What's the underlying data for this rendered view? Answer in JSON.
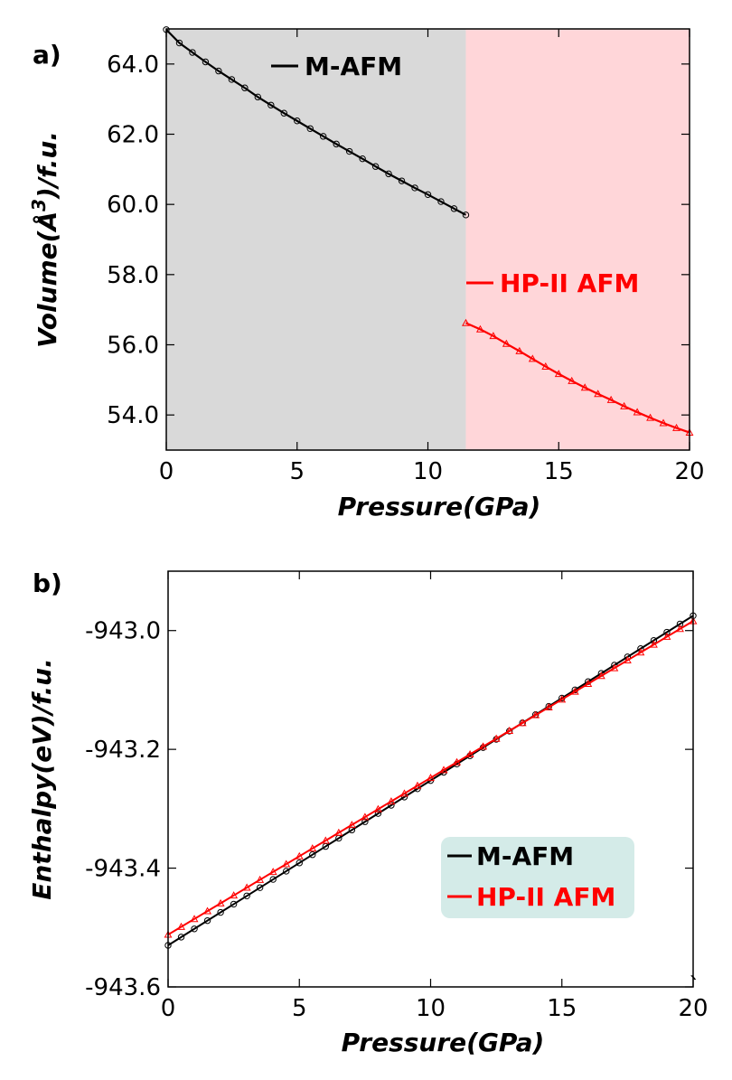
{
  "chart_data": [
    {
      "panel": "a)",
      "type": "line",
      "xlabel": "Pressure(GPa)",
      "ylabel": "Volume(Å^3)/f.u.",
      "ylabel_base": "Volume(Å",
      "ylabel_sup": "3",
      "ylabel_tail": ")/f.u.",
      "xlim": [
        0,
        20
      ],
      "ylim": [
        53.0,
        65.0
      ],
      "xticks": [
        "0",
        "5",
        "10",
        "15",
        "20"
      ],
      "xtick_values": [
        0,
        5,
        10,
        15,
        20
      ],
      "yticks": [
        "54.0",
        "56.0",
        "58.0",
        "60.0",
        "62.0",
        "64.0"
      ],
      "ytick_values": [
        54,
        56,
        58,
        60,
        62,
        64
      ],
      "grid": false,
      "regions": [
        {
          "from": 0,
          "to": 11.45,
          "color": "#d9d9d9"
        },
        {
          "from": 11.45,
          "to": 20,
          "color": "#ffd6d9"
        }
      ],
      "series": [
        {
          "name": "M-AFM",
          "color": "#000000",
          "marker": "circle",
          "x": [
            0,
            0.5,
            1,
            1.5,
            2,
            2.5,
            3,
            3.5,
            4,
            4.5,
            5,
            5.5,
            6,
            6.5,
            7,
            7.5,
            8,
            8.5,
            9,
            9.5,
            10,
            10.5,
            11,
            11.45
          ],
          "y": [
            64.98,
            64.6,
            64.33,
            64.06,
            63.8,
            63.56,
            63.32,
            63.06,
            62.83,
            62.6,
            62.38,
            62.16,
            61.94,
            61.72,
            61.51,
            61.3,
            61.08,
            60.87,
            60.67,
            60.47,
            60.28,
            60.08,
            59.88,
            59.7
          ]
        },
        {
          "name": "HP-II AFM",
          "color": "#ff0000",
          "marker": "triangle",
          "x": [
            11.45,
            12,
            12.5,
            13,
            13.5,
            14,
            14.5,
            15,
            15.5,
            16,
            16.5,
            17,
            17.5,
            18,
            18.5,
            19,
            19.5,
            20
          ],
          "y": [
            56.62,
            56.44,
            56.25,
            56.03,
            55.82,
            55.6,
            55.38,
            55.17,
            54.97,
            54.78,
            54.6,
            54.43,
            54.25,
            54.08,
            53.92,
            53.77,
            53.63,
            53.5
          ]
        }
      ],
      "legend_position": "top-center (inside plot, series labelled separately)"
    },
    {
      "panel": "b)",
      "type": "line",
      "xlabel": "Pressure(GPa)",
      "ylabel": "Enthalpy(eV)/f.u.",
      "xlim": [
        0,
        20
      ],
      "ylim": [
        -943.6,
        -942.9
      ],
      "xticks": [
        "0",
        "5",
        "10",
        "15",
        "20"
      ],
      "xtick_values": [
        0,
        5,
        10,
        15,
        20
      ],
      "yticks": [
        "-943.0",
        "-943.2",
        "-943.4",
        "-943.6"
      ],
      "ytick_values": [
        -943.0,
        -943.2,
        -943.4,
        -943.6
      ],
      "grid": false,
      "series": [
        {
          "name": "M-AFM",
          "color": "#000000",
          "marker": "circle",
          "x_start": 0,
          "x_end": 20,
          "x_step": 0.5,
          "y_start": -943.53,
          "y_end": -942.975
        },
        {
          "name": "HP-II AFM",
          "color": "#ff0000",
          "marker": "triangle",
          "x_start": 0,
          "x_end": 20,
          "x_step": 0.5,
          "y_start": -943.512,
          "y_end": -942.984
        }
      ],
      "legend_position": "lower-right",
      "legend_bg": "#d4ebe8",
      "stray_mark": "`"
    }
  ]
}
